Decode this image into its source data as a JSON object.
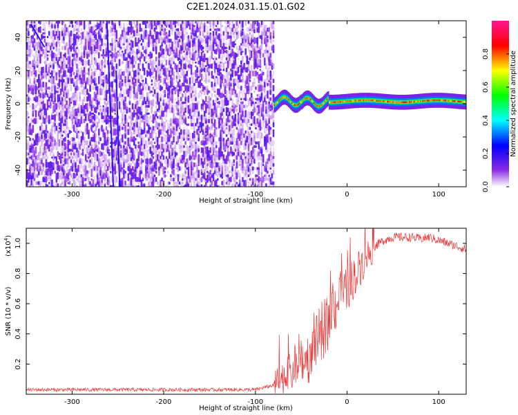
{
  "title": "C2E1.2024.031.15.01.G02",
  "chart_data": [
    {
      "type": "heatmap",
      "xlabel": "Height of straight line (km)",
      "ylabel": "Frequency (Hz)",
      "xlim": [
        -350,
        130
      ],
      "ylim": [
        -50,
        50
      ],
      "xticks": [
        -300,
        -200,
        -100,
        0,
        100
      ],
      "yticks": [
        -40,
        -20,
        0,
        20,
        40
      ],
      "noise_region_x": [
        -350,
        -80
      ],
      "signal_region_x": [
        -80,
        130
      ],
      "signal_frequency_hz": 0,
      "colorbar": {
        "label": "Normalized spectral amplitude",
        "range": [
          0,
          1
        ],
        "ticks": [
          "0.0",
          "0.2",
          "0.4",
          "0.6",
          "0.8"
        ],
        "colors": [
          "#ffffff",
          "#8a2be2",
          "#0000ff",
          "#00ffff",
          "#00ff00",
          "#ffff00",
          "#ff0000",
          "#ff1493"
        ]
      }
    },
    {
      "type": "line",
      "xlabel": "Height of straight line (km)",
      "ylabel": "SNR (10 * v/v)",
      "y_multiplier": "(x10",
      "y_multiplier_exp": "4",
      "y_multiplier_close": ")",
      "xlim": [
        -350,
        130
      ],
      "ylim": [
        0,
        1.1
      ],
      "xticks": [
        -300,
        -200,
        -100,
        0,
        100
      ],
      "yticks": [
        "0.2",
        "0.4",
        "0.6",
        "0.8",
        "1.0"
      ],
      "series": [
        {
          "color": "#ee3333",
          "x": [
            -350,
            -100,
            -80,
            -60,
            -40,
            -30,
            -20,
            -10,
            0,
            10,
            20,
            30,
            40,
            50,
            60,
            70,
            80,
            90,
            100,
            110,
            120,
            130
          ],
          "y": [
            0.03,
            0.03,
            0.06,
            0.15,
            0.25,
            0.38,
            0.5,
            0.62,
            0.7,
            0.8,
            0.9,
            0.98,
            1.02,
            1.04,
            1.04,
            1.04,
            1.03,
            1.04,
            1.02,
            1.0,
            0.98,
            0.96
          ]
        }
      ]
    }
  ]
}
